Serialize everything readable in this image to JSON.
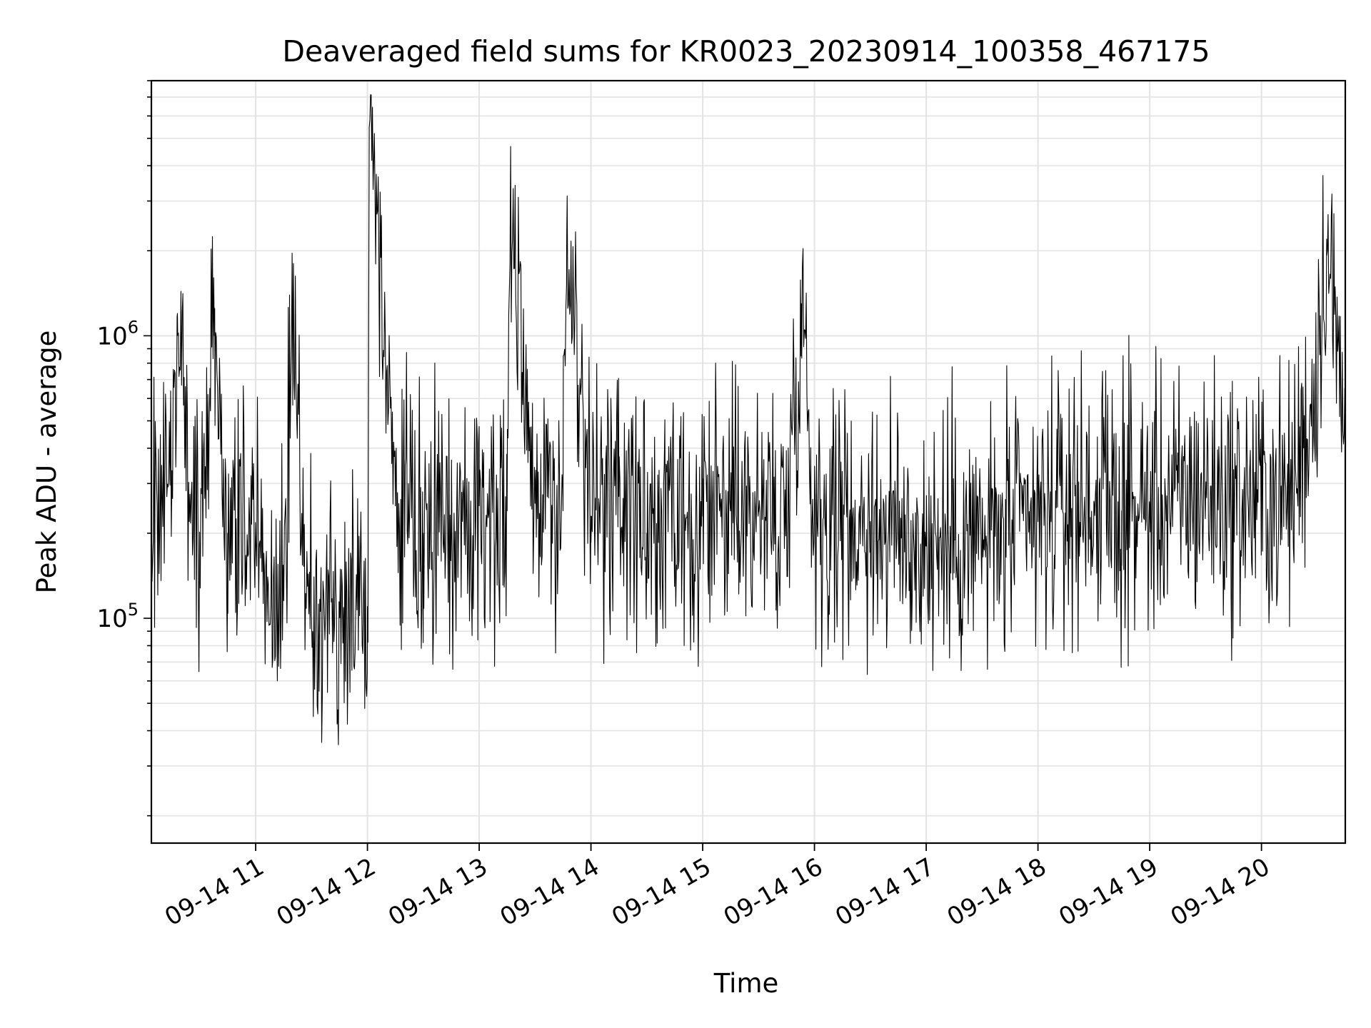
{
  "chart_data": {
    "type": "line",
    "title": "Deaveraged field sums for KR0023_20230914_100358_467175",
    "xlabel": "Time",
    "ylabel": "Peak ADU - average",
    "yscale": "log",
    "grid": true,
    "legend": "none",
    "line_color": "#000000",
    "x_ticks": [
      {
        "value": "2023-09-14T11:00",
        "label": "09-14 11"
      },
      {
        "value": "2023-09-14T12:00",
        "label": "09-14 12"
      },
      {
        "value": "2023-09-14T13:00",
        "label": "09-14 13"
      },
      {
        "value": "2023-09-14T14:00",
        "label": "09-14 14"
      },
      {
        "value": "2023-09-14T15:00",
        "label": "09-14 15"
      },
      {
        "value": "2023-09-14T16:00",
        "label": "09-14 16"
      },
      {
        "value": "2023-09-14T17:00",
        "label": "09-14 17"
      },
      {
        "value": "2023-09-14T18:00",
        "label": "09-14 18"
      },
      {
        "value": "2023-09-14T19:00",
        "label": "09-14 19"
      },
      {
        "value": "2023-09-14T20:00",
        "label": "09-14 20"
      }
    ],
    "y_ticks": [
      {
        "value": 100000,
        "base": "10",
        "exp": "5"
      },
      {
        "value": 1000000,
        "base": "10",
        "exp": "6"
      }
    ],
    "xlim": [
      "2023-09-14T10:04",
      "2023-09-14T20:45"
    ],
    "ylim": [
      16000,
      8000000
    ],
    "series": [
      {
        "x": [
          "2023-09-14T10:04",
          "2023-09-14T10:15",
          "2023-09-14T10:18",
          "2023-09-14T10:25",
          "2023-09-14T10:30",
          "2023-09-14T10:38",
          "2023-09-14T10:45",
          "2023-09-14T11:00",
          "2023-09-14T11:15",
          "2023-09-14T11:20",
          "2023-09-14T11:27",
          "2023-09-14T11:30",
          "2023-09-14T11:45",
          "2023-09-14T12:00",
          "2023-09-14T12:01",
          "2023-09-14T12:15",
          "2023-09-14T12:30",
          "2023-09-14T12:45",
          "2023-09-14T13:00",
          "2023-09-14T13:15",
          "2023-09-14T13:17",
          "2023-09-14T13:30",
          "2023-09-14T13:45",
          "2023-09-14T13:47",
          "2023-09-14T14:00",
          "2023-09-14T14:15",
          "2023-09-14T14:30",
          "2023-09-14T14:45",
          "2023-09-14T14:58",
          "2023-09-14T15:00",
          "2023-09-14T15:15",
          "2023-09-14T15:30",
          "2023-09-14T15:45",
          "2023-09-14T15:53",
          "2023-09-14T16:00",
          "2023-09-14T16:15",
          "2023-09-14T16:30",
          "2023-09-14T16:45",
          "2023-09-14T17:00",
          "2023-09-14T17:15",
          "2023-09-14T17:30",
          "2023-09-14T17:45",
          "2023-09-14T18:00",
          "2023-09-14T18:15",
          "2023-09-14T18:30",
          "2023-09-14T18:45",
          "2023-09-14T19:00",
          "2023-09-14T19:15",
          "2023-09-14T19:30",
          "2023-09-14T19:45",
          "2023-09-14T20:00",
          "2023-09-14T20:15",
          "2023-09-14T20:28",
          "2023-09-14T20:35",
          "2023-09-14T20:45"
        ],
        "y": [
          250000,
          300000,
          1200000,
          220000,
          160000,
          1250000,
          200000,
          200000,
          130000,
          1050000,
          110000,
          100000,
          110000,
          110000,
          5500000,
          250000,
          200000,
          200000,
          250000,
          240000,
          3200000,
          280000,
          240000,
          2300000,
          230000,
          270000,
          200000,
          200000,
          150000,
          230000,
          250000,
          240000,
          230000,
          1300000,
          240000,
          230000,
          220000,
          200000,
          180000,
          190000,
          190000,
          200000,
          220000,
          250000,
          260000,
          240000,
          250000,
          260000,
          280000,
          260000,
          270000,
          260000,
          600000,
          2200000,
          450000
        ]
      }
    ]
  }
}
